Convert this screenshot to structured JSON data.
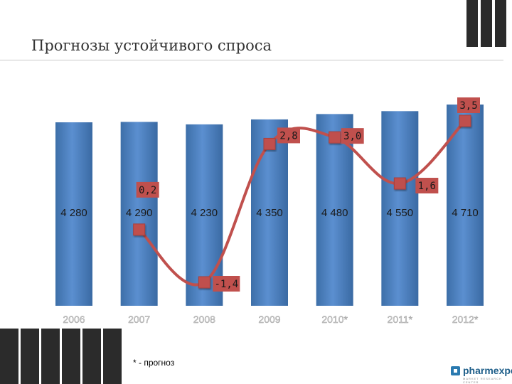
{
  "title": "Прогнозы устойчивого спроса",
  "footnote": "* - прогноз",
  "logo": {
    "name": "pharmexpert",
    "tagline": "MARKET RESEARCH CENTER"
  },
  "colors": {
    "bar": "#4f81bd",
    "line": "#c0504d",
    "label_box": "#c0504d",
    "decor": "#2b2b2b"
  },
  "chart_data": {
    "type": "bar",
    "categories": [
      "2006",
      "2007",
      "2008",
      "2009",
      "2010*",
      "2011*",
      "2012*"
    ],
    "series": [
      {
        "values": [
          4280,
          4290,
          4230,
          4350,
          4480,
          4550,
          4710
        ],
        "value_labels": [
          "4 280",
          "4 290",
          "4 230",
          "4 350",
          "4 480",
          "4 550",
          "4 710"
        ]
      },
      {
        "type": "line",
        "values": [
          null,
          0.2,
          -1.4,
          2.8,
          3.0,
          1.6,
          3.5
        ],
        "value_labels": [
          "",
          "0,2",
          "-1,4",
          "2,8",
          "3,0",
          "1,6",
          "3,5"
        ]
      }
    ],
    "grid": false,
    "legend": "none"
  }
}
